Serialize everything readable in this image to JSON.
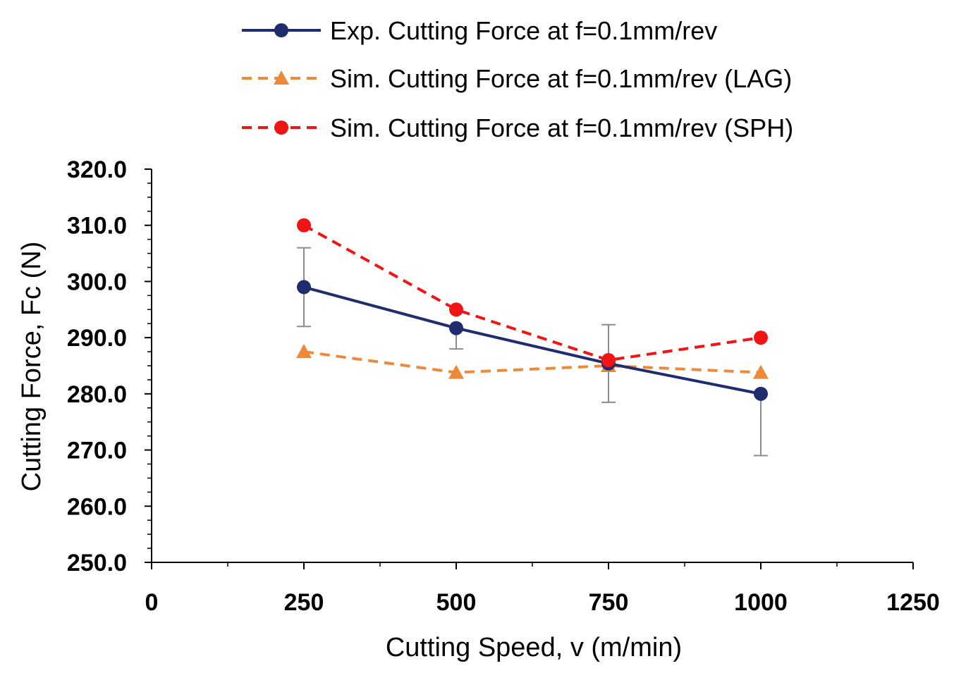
{
  "chart_data": {
    "type": "line",
    "xlabel": "Cutting Speed, v (m/min)",
    "ylabel": "Cutting Force, Fc  (N)",
    "xlim": [
      0,
      1250
    ],
    "ylim": [
      250,
      320
    ],
    "x_ticks": [
      0,
      250,
      500,
      750,
      1000,
      1250
    ],
    "x_tick_labels": [
      "0",
      "250",
      "500",
      "750",
      "1000",
      "1250"
    ],
    "y_ticks": [
      250,
      260,
      270,
      280,
      290,
      300,
      310,
      320
    ],
    "y_tick_labels": [
      "250.0",
      "260.0",
      "270.0",
      "280.0",
      "290.0",
      "300.0",
      "310.0",
      "320.0"
    ],
    "grid": false,
    "legend_position": "top",
    "series": [
      {
        "name": "Exp. Cutting Force at f=0.1mm/rev",
        "color": "#1f2d6e",
        "line_style": "solid",
        "marker": "circle",
        "x": [
          250,
          500,
          750,
          1000
        ],
        "y": [
          299,
          291.7,
          285.4,
          280
        ],
        "error_low": [
          292,
          288,
          278.5,
          269
        ],
        "error_high": [
          306,
          291.7,
          292.3,
          280
        ]
      },
      {
        "name": "Sim. Cutting Force at f=0.1mm/rev (LAG)",
        "color": "#ed8a3a",
        "line_style": "dashed",
        "marker": "triangle",
        "x": [
          250,
          500,
          750,
          1000
        ],
        "y": [
          287.5,
          283.8,
          285,
          283.8
        ]
      },
      {
        "name": "Sim. Cutting Force at f=0.1mm/rev (SPH)",
        "color": "#f01414",
        "line_style": "dashed",
        "marker": "circle",
        "x": [
          250,
          500,
          750,
          1000
        ],
        "y": [
          310,
          295,
          286,
          290
        ]
      }
    ]
  }
}
